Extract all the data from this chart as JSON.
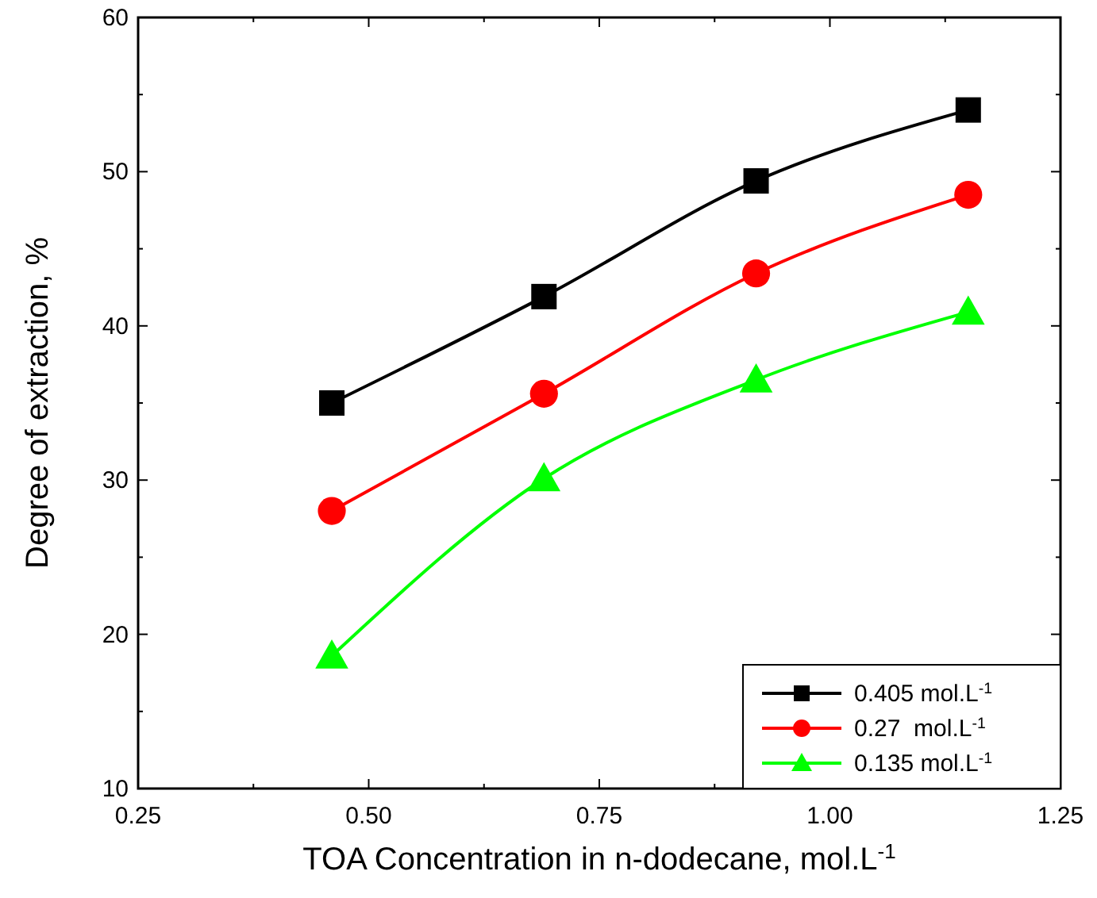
{
  "chart_data": {
    "type": "line",
    "xlabel": "TOA Concentration in n-dodecane, mol.L$^{-1}$",
    "ylabel": "Degree of extraction, %",
    "x": [
      0.46,
      0.69,
      0.92,
      1.15
    ],
    "series": [
      {
        "name": "0.405 mol.L$^{-1}$",
        "color": "#000000",
        "marker": "square",
        "values": [
          35,
          41.9,
          49.4,
          54
        ]
      },
      {
        "name": "0.27  mol.L$^{-1}$",
        "color": "#ff0000",
        "marker": "circle",
        "values": [
          28,
          35.6,
          43.4,
          48.5
        ]
      },
      {
        "name": "0.135 mol.L$^{-1}$",
        "color": "#00ff00",
        "marker": "triangle",
        "values": [
          18.6,
          30.1,
          36.5,
          40.9
        ]
      }
    ],
    "xlim": [
      0.25,
      1.25
    ],
    "xticks": [
      {
        "value": 0.25,
        "label": "0.25"
      },
      {
        "value": 0.5,
        "label": "0.50"
      },
      {
        "value": 0.75,
        "label": "0.75"
      },
      {
        "value": 1,
        "label": "1.00"
      },
      {
        "value": 1.25,
        "label": "1.25"
      }
    ],
    "ylim": [
      10,
      60
    ],
    "yticks": [
      10,
      20,
      30,
      40,
      50,
      60
    ],
    "legend": "bottom right",
    "grid": false
  }
}
